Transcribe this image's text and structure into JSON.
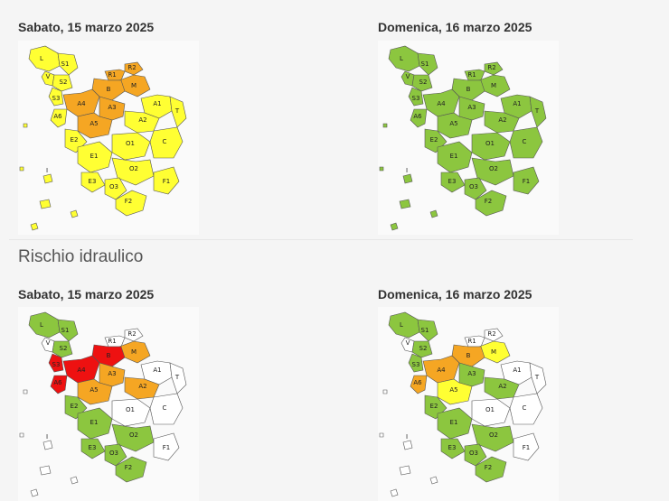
{
  "sections": [
    {
      "title": "",
      "maps": [
        {
          "date": "Sabato, 15 marzo 2025",
          "legend": "giallo/arancio"
        },
        {
          "date": "Domenica, 16 marzo 2025",
          "legend": "verde"
        }
      ]
    },
    {
      "title": "Rischio idraulico",
      "maps": [
        {
          "date": "Sabato, 15 marzo 2025"
        },
        {
          "date": "Domenica, 16 marzo 2025"
        }
      ]
    }
  ],
  "colors": {
    "yellow": "#ffff33",
    "orange": "#f5a623",
    "green": "#8cc63f",
    "red": "#ee1111",
    "white": "#ffffff",
    "border": "#555555"
  },
  "zone_labels": [
    "L",
    "S1",
    "R2",
    "R1",
    "V",
    "S2",
    "M",
    "B",
    "S3",
    "A4",
    "A3",
    "A1",
    "A6",
    "A5",
    "T",
    "A2",
    "O1",
    "C",
    "E2",
    "E1",
    "O2",
    "I",
    "E3",
    "O3",
    "F1",
    "F2"
  ],
  "zone_colors": {
    "map1": {
      "L": "yellow",
      "S1": "yellow",
      "R2": "orange",
      "R1": "orange",
      "V": "yellow",
      "S2": "yellow",
      "M": "orange",
      "B": "orange",
      "S3": "yellow",
      "A4": "orange",
      "A3": "orange",
      "A1": "yellow",
      "A6": "yellow",
      "A5": "orange",
      "T": "yellow",
      "A2": "yellow",
      "O1": "yellow",
      "C": "yellow",
      "E2": "yellow",
      "E1": "yellow",
      "O2": "yellow",
      "I": "yellow",
      "E3": "yellow",
      "O3": "yellow",
      "F1": "yellow",
      "F2": "yellow"
    },
    "map2": {
      "L": "green",
      "S1": "green",
      "R2": "green",
      "R1": "green",
      "V": "green",
      "S2": "green",
      "M": "green",
      "B": "green",
      "S3": "green",
      "A4": "green",
      "A3": "green",
      "A1": "green",
      "A6": "green",
      "A5": "green",
      "T": "green",
      "A2": "green",
      "O1": "green",
      "C": "green",
      "E2": "green",
      "E1": "green",
      "O2": "green",
      "I": "green",
      "E3": "green",
      "O3": "green",
      "F1": "green",
      "F2": "green"
    },
    "map3": {
      "L": "green",
      "S1": "green",
      "R2": "white",
      "R1": "white",
      "V": "white",
      "S2": "green",
      "M": "orange",
      "B": "red",
      "S3": "red",
      "A4": "red",
      "A3": "orange",
      "A1": "white",
      "A6": "red",
      "A5": "orange",
      "T": "white",
      "A2": "orange",
      "O1": "white",
      "C": "white",
      "E2": "green",
      "E1": "green",
      "O2": "green",
      "I": "white",
      "E3": "green",
      "O3": "green",
      "F1": "white",
      "F2": "green"
    },
    "map4": {
      "L": "green",
      "S1": "green",
      "R2": "white",
      "R1": "white",
      "V": "white",
      "S2": "green",
      "M": "yellow",
      "B": "orange",
      "S3": "green",
      "A4": "orange",
      "A3": "green",
      "A1": "white",
      "A6": "orange",
      "A5": "yellow",
      "T": "white",
      "A2": "green",
      "O1": "white",
      "C": "white",
      "E2": "green",
      "E1": "green",
      "O2": "green",
      "I": "white",
      "E3": "green",
      "O3": "green",
      "F1": "white",
      "F2": "green"
    }
  }
}
